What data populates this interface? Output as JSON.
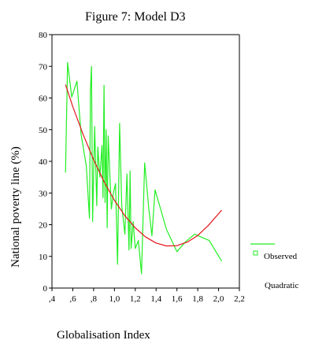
{
  "chart_data": {
    "type": "line",
    "title": "Figure 7: Model D3",
    "xlabel": "Globalisation Index",
    "ylabel": "National poverty line (%)",
    "xlim": [
      0.4,
      2.2
    ],
    "ylim": [
      0,
      80
    ],
    "x_ticks": [
      0.4,
      0.6,
      0.8,
      1.0,
      1.2,
      1.4,
      1.6,
      1.8,
      2.0,
      2.2
    ],
    "x_tick_labels": [
      ",4",
      ",6",
      ",8",
      "1,0",
      "1,2",
      "1,4",
      "1,6",
      "1,8",
      "2,0",
      "2,2"
    ],
    "y_ticks": [
      0,
      10,
      20,
      30,
      40,
      50,
      60,
      70,
      80
    ],
    "y_tick_labels": [
      "0",
      "10",
      "20",
      "30",
      "40",
      "50",
      "60",
      "70",
      "80"
    ],
    "grid": false,
    "legend_position": "right",
    "series": [
      {
        "name": "Observed",
        "color": "#22ee22",
        "points": [
          [
            0.53,
            36.5
          ],
          [
            0.55,
            71.2
          ],
          [
            0.59,
            60.3
          ],
          [
            0.64,
            65.3
          ],
          [
            0.68,
            48.5
          ],
          [
            0.73,
            38.5
          ],
          [
            0.76,
            22.0
          ],
          [
            0.77,
            63.0
          ],
          [
            0.78,
            70.0
          ],
          [
            0.79,
            21.0
          ],
          [
            0.81,
            51.0
          ],
          [
            0.83,
            26.0
          ],
          [
            0.84,
            44.5
          ],
          [
            0.86,
            35.0
          ],
          [
            0.88,
            45.0
          ],
          [
            0.89,
            28.5
          ],
          [
            0.9,
            64.0
          ],
          [
            0.91,
            27.0
          ],
          [
            0.92,
            50.0
          ],
          [
            0.93,
            19.0
          ],
          [
            0.94,
            48.0
          ],
          [
            0.96,
            33.0
          ],
          [
            0.97,
            25.0
          ],
          [
            0.99,
            30.0
          ],
          [
            1.01,
            33.0
          ],
          [
            1.03,
            7.5
          ],
          [
            1.05,
            52.0
          ],
          [
            1.07,
            26.0
          ],
          [
            1.1,
            17.0
          ],
          [
            1.12,
            36.0
          ],
          [
            1.14,
            12.0
          ],
          [
            1.15,
            37.0
          ],
          [
            1.16,
            12.5
          ],
          [
            1.18,
            21.0
          ],
          [
            1.2,
            12.5
          ],
          [
            1.23,
            15.0
          ],
          [
            1.26,
            4.5
          ],
          [
            1.29,
            39.5
          ],
          [
            1.33,
            25.0
          ],
          [
            1.36,
            16.5
          ],
          [
            1.39,
            31.0
          ],
          [
            1.5,
            18.5
          ],
          [
            1.6,
            11.5
          ],
          [
            1.68,
            14.5
          ],
          [
            1.77,
            17.0
          ],
          [
            1.91,
            15.0
          ],
          [
            2.03,
            8.5
          ]
        ]
      },
      {
        "name": "Quadratic",
        "color": "#e4151c",
        "points": [
          [
            0.53,
            64.2
          ],
          [
            0.6,
            57.3
          ],
          [
            0.7,
            48.4
          ],
          [
            0.8,
            40.5
          ],
          [
            0.9,
            33.6
          ],
          [
            1.0,
            27.7
          ],
          [
            1.1,
            22.8
          ],
          [
            1.2,
            19.0
          ],
          [
            1.3,
            16.1
          ],
          [
            1.4,
            14.2
          ],
          [
            1.5,
            13.3
          ],
          [
            1.6,
            13.4
          ],
          [
            1.7,
            14.5
          ],
          [
            1.8,
            16.6
          ],
          [
            1.9,
            19.7
          ],
          [
            2.03,
            24.6
          ]
        ]
      }
    ]
  }
}
